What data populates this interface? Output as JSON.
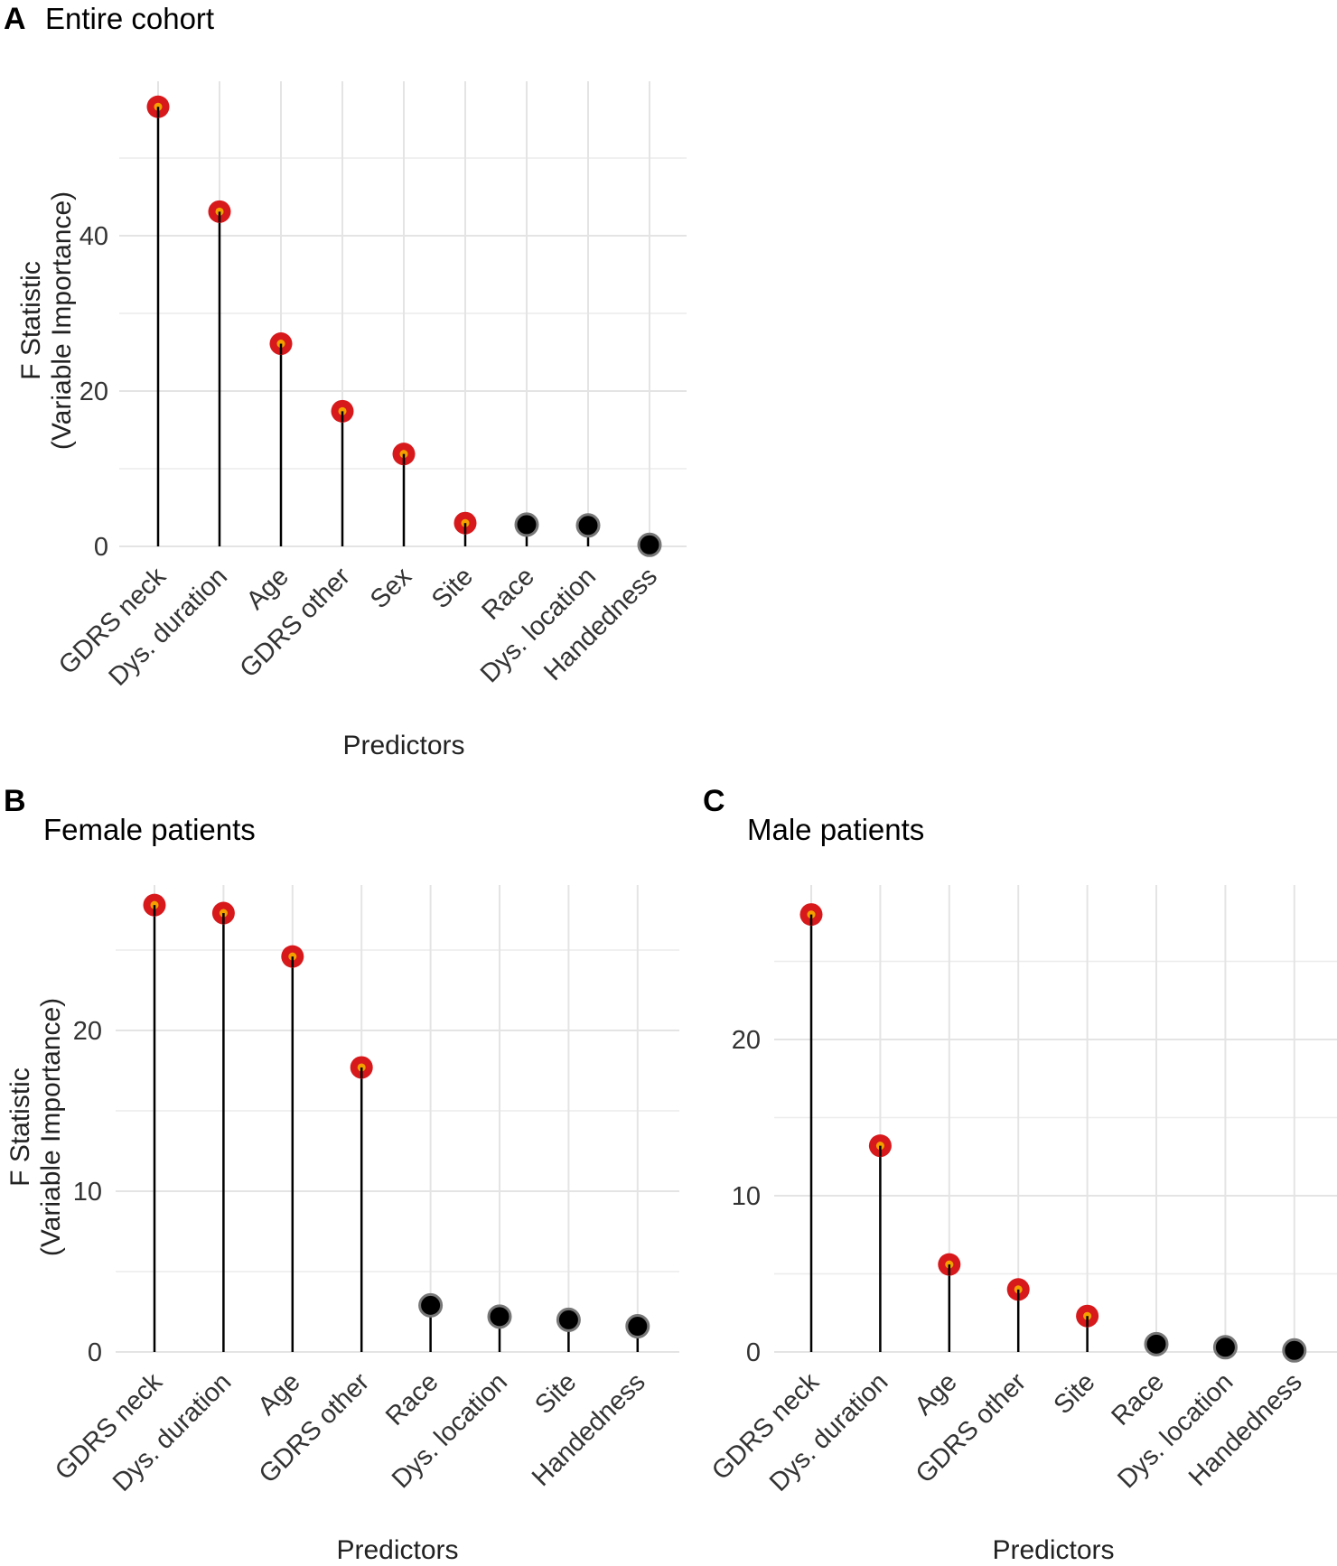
{
  "colors": {
    "significant_fill": "#d7191c",
    "significant_center": "#f4a000",
    "nonsignificant_fill": "#000000",
    "nonsignificant_ring": "#777777"
  },
  "chart_data": [
    {
      "id": "A",
      "panel_letter": "A",
      "type": "lollipop",
      "title": "Entire cohort",
      "xlabel": "Predictors",
      "ylabel_line1": "F Statistic",
      "ylabel_line2": "(Variable Importance)",
      "ylim": [
        0,
        58
      ],
      "yticks": [
        0,
        20,
        40
      ],
      "categories": [
        "GDRS neck",
        "Dys. duration",
        "Age",
        "GDRS other",
        "Sex",
        "Site",
        "Race",
        "Dys. location",
        "Handedness"
      ],
      "values": [
        56.6,
        43.1,
        26.1,
        17.4,
        11.9,
        3.0,
        2.8,
        2.7,
        0.2
      ],
      "significant": [
        true,
        true,
        true,
        true,
        true,
        true,
        false,
        false,
        false
      ]
    },
    {
      "id": "B",
      "panel_letter": "B",
      "type": "lollipop",
      "title": "Female patients",
      "xlabel": "Predictors",
      "ylabel_line1": "F Statistic",
      "ylabel_line2": "(Variable Importance)",
      "ylim": [
        0,
        29
      ],
      "yticks": [
        0,
        10,
        20
      ],
      "categories": [
        "GDRS neck",
        "Dys. duration",
        "Age",
        "GDRS other",
        "Race",
        "Dys. location",
        "Site",
        "Handedness"
      ],
      "values": [
        27.8,
        27.3,
        24.6,
        17.7,
        2.9,
        2.2,
        2.0,
        1.6
      ],
      "significant": [
        true,
        true,
        true,
        true,
        false,
        false,
        false,
        false
      ]
    },
    {
      "id": "C",
      "panel_letter": "C",
      "type": "lollipop",
      "title": "Male patients",
      "xlabel": "Predictors",
      "ylabel_line1": "",
      "ylabel_line2": "",
      "ylim": [
        0,
        29
      ],
      "yticks": [
        0,
        10,
        20
      ],
      "categories": [
        "GDRS neck",
        "Dys. duration",
        "Age",
        "GDRS other",
        "Site",
        "Race",
        "Dys. location",
        "Handedness"
      ],
      "values": [
        28.0,
        13.2,
        5.6,
        4.0,
        2.3,
        0.5,
        0.3,
        0.1
      ],
      "significant": [
        true,
        true,
        true,
        true,
        true,
        false,
        false,
        false
      ]
    }
  ]
}
